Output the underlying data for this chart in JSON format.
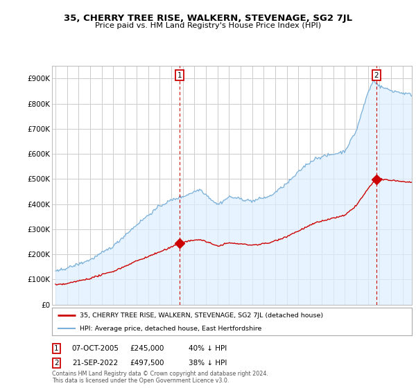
{
  "title": "35, CHERRY TREE RISE, WALKERN, STEVENAGE, SG2 7JL",
  "subtitle": "Price paid vs. HM Land Registry's House Price Index (HPI)",
  "background_color": "#ffffff",
  "plot_bg_color": "#ffffff",
  "grid_color": "#cccccc",
  "hpi_color": "#7ab0d8",
  "hpi_fill_color": "#ddeeff",
  "price_color": "#cc0000",
  "legend_line1": "35, CHERRY TREE RISE, WALKERN, STEVENAGE, SG2 7JL (detached house)",
  "legend_line2": "HPI: Average price, detached house, East Hertfordshire",
  "footer": "Contains HM Land Registry data © Crown copyright and database right 2024.\nThis data is licensed under the Open Government Licence v3.0.",
  "ylim": [
    0,
    950000
  ],
  "yticks": [
    0,
    100000,
    200000,
    300000,
    400000,
    500000,
    600000,
    700000,
    800000,
    900000
  ],
  "ytick_labels": [
    "£0",
    "£100K",
    "£200K",
    "£300K",
    "£400K",
    "£500K",
    "£600K",
    "£700K",
    "£800K",
    "£900K"
  ],
  "sale1_year": 2005.75,
  "sale1_price": 245000,
  "sale2_year": 2022.72,
  "sale2_price": 497500,
  "ann1_date": "07-OCT-2005",
  "ann1_price": "£245,000",
  "ann1_hpi": "40% ↓ HPI",
  "ann2_date": "21-SEP-2022",
  "ann2_price": "£497,500",
  "ann2_hpi": "38% ↓ HPI"
}
